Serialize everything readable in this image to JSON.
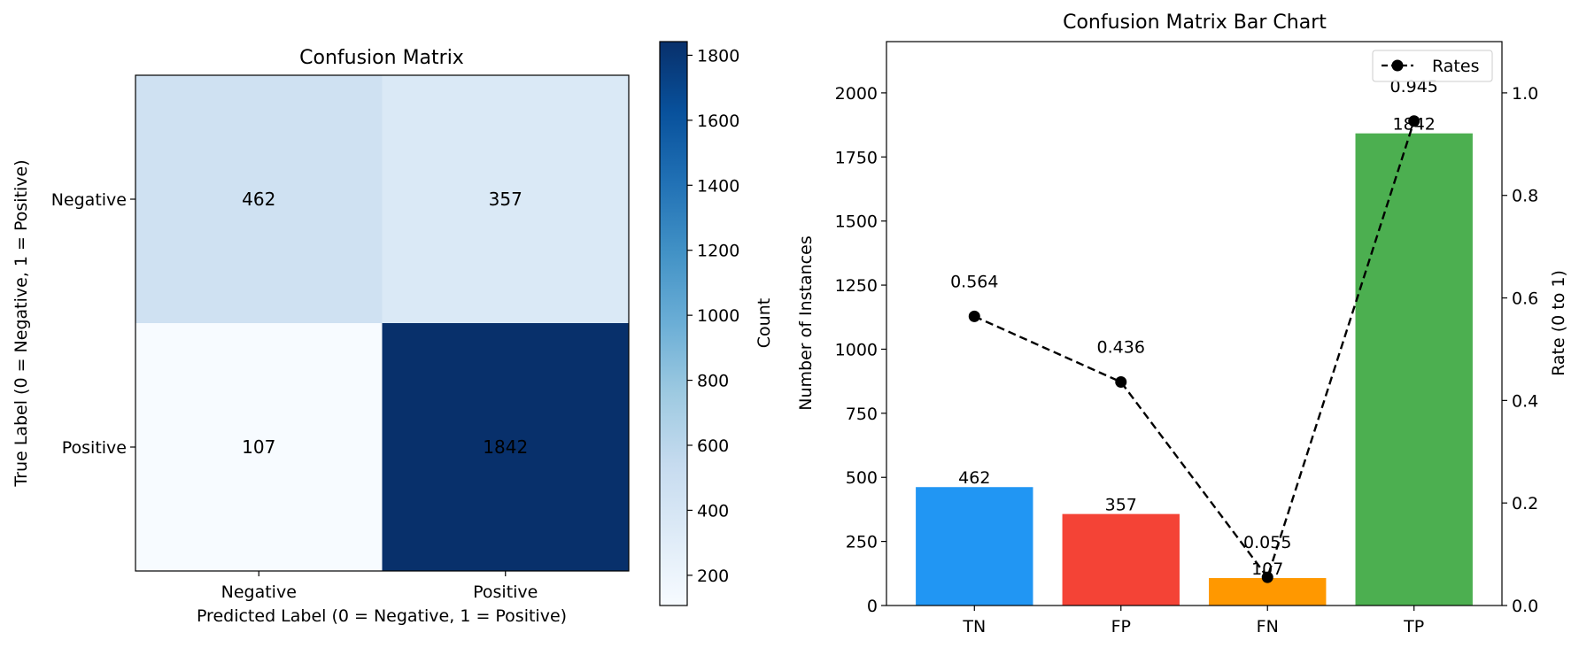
{
  "chart_data": [
    {
      "type": "heatmap",
      "title": "Confusion Matrix",
      "xlabel": "Predicted Label (0 = Negative, 1 = Positive)",
      "ylabel": "True Label (0 = Negative, 1 = Positive)",
      "x_categories": [
        "Negative",
        "Positive"
      ],
      "y_categories": [
        "Negative",
        "Positive"
      ],
      "values": [
        [
          462,
          357
        ],
        [
          107,
          1842
        ]
      ],
      "colormap": "Blues",
      "colorbar": {
        "label": "Count",
        "range": [
          107,
          1842
        ],
        "ticks": [
          200,
          400,
          600,
          800,
          1000,
          1200,
          1400,
          1600,
          1800
        ],
        "tick_labels": [
          "200",
          "400",
          "600",
          "800",
          "1000",
          "1200",
          "1400",
          "1600",
          "1800"
        ]
      }
    },
    {
      "type": "bar",
      "title": "Confusion Matrix Bar Chart",
      "categories": [
        "TN",
        "FP",
        "FN",
        "TP"
      ],
      "values": [
        462,
        357,
        107,
        1842
      ],
      "value_labels": [
        "462",
        "357",
        "107",
        "1842"
      ],
      "colors": [
        "#2196f3",
        "#f44336",
        "#ff9800",
        "#4caf50"
      ],
      "ylabel": "Number of Instances",
      "ylim": [
        0,
        2200
      ],
      "yticks": [
        0,
        250,
        500,
        750,
        1000,
        1250,
        1500,
        1750,
        2000
      ],
      "ytick_labels": [
        "0",
        "250",
        "500",
        "750",
        "1000",
        "1250",
        "1500",
        "1750",
        "2000"
      ],
      "secondary_axis": {
        "label": "Rate (0 to 1)",
        "ylim": [
          0,
          1.1
        ],
        "ticks": [
          0,
          0.2,
          0.4,
          0.6,
          0.8,
          1.0
        ],
        "tick_labels": [
          "0.0",
          "0.2",
          "0.4",
          "0.6",
          "0.8",
          "1.0"
        ]
      },
      "line_series": {
        "name": "Rates",
        "values": [
          0.564,
          0.436,
          0.055,
          0.945
        ],
        "value_labels": [
          "0.564",
          "0.436",
          "0.055",
          "0.945"
        ],
        "style": "dashed",
        "marker": "circle",
        "color": "#000000"
      },
      "legend": {
        "entries": [
          "Rates"
        ],
        "placement": "upper-right"
      }
    }
  ]
}
